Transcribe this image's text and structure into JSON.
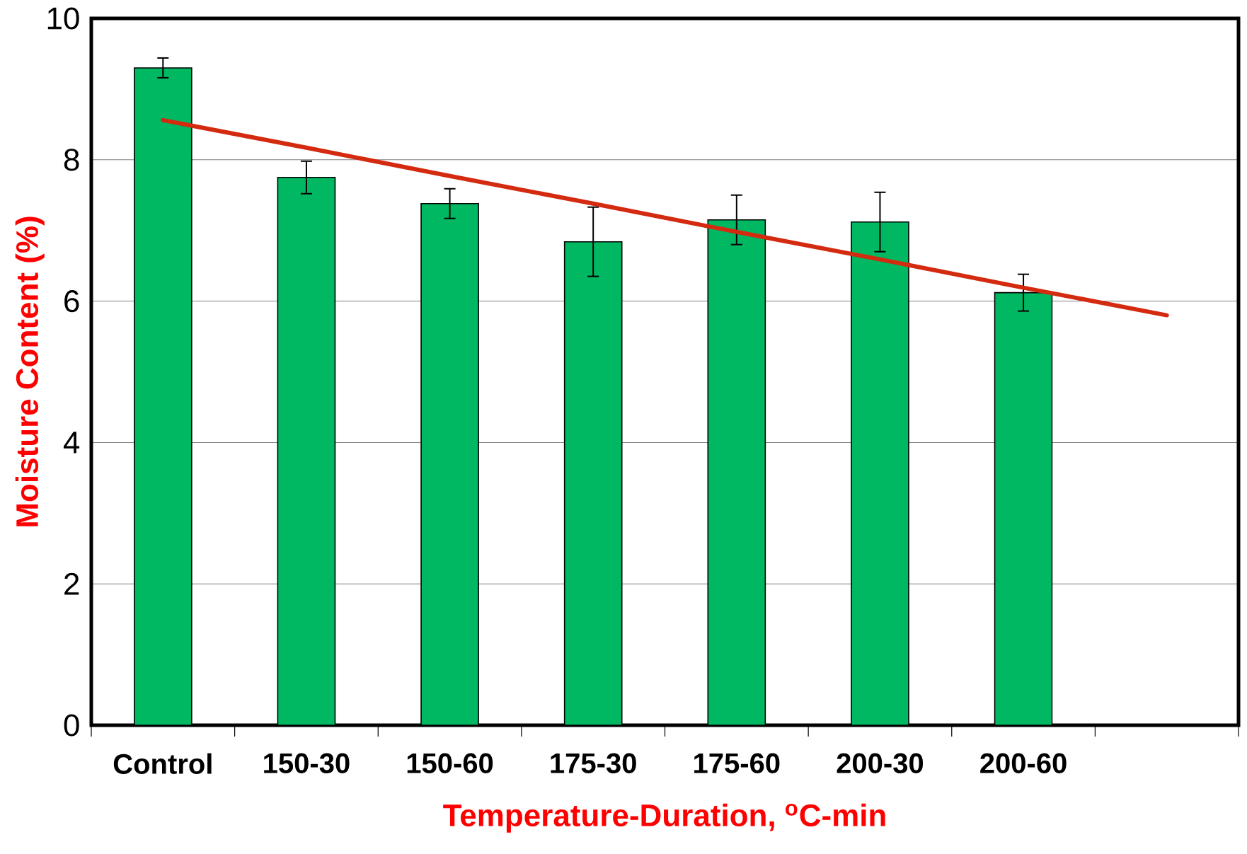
{
  "chart_data": {
    "type": "bar",
    "xlabel": "Temperature-Duration, $^{o}$C-min",
    "ylabel": "Moisture Content (%)",
    "categories": [
      "Control",
      "150-30",
      "150-60",
      "175-30",
      "175-60",
      "200-30",
      "200-60",
      null
    ],
    "series": [
      {
        "color": "#00b862",
        "values": [
          9.3,
          7.75,
          7.38,
          6.84,
          7.15,
          7.12,
          6.12,
          null
        ],
        "errors": [
          0.14,
          0.23,
          0.21,
          0.49,
          0.35,
          0.42,
          0.26,
          null
        ]
      },
      {
        "type": "line",
        "color": "#d42a10",
        "values": [
          8.56,
          8.17,
          7.77,
          7.38,
          6.98,
          6.59,
          6.19,
          5.8
        ]
      }
    ],
    "ylim": [
      0,
      10
    ],
    "yticks": [
      0,
      2,
      4,
      6,
      8,
      10
    ],
    "grid": "y",
    "marker": "none"
  }
}
